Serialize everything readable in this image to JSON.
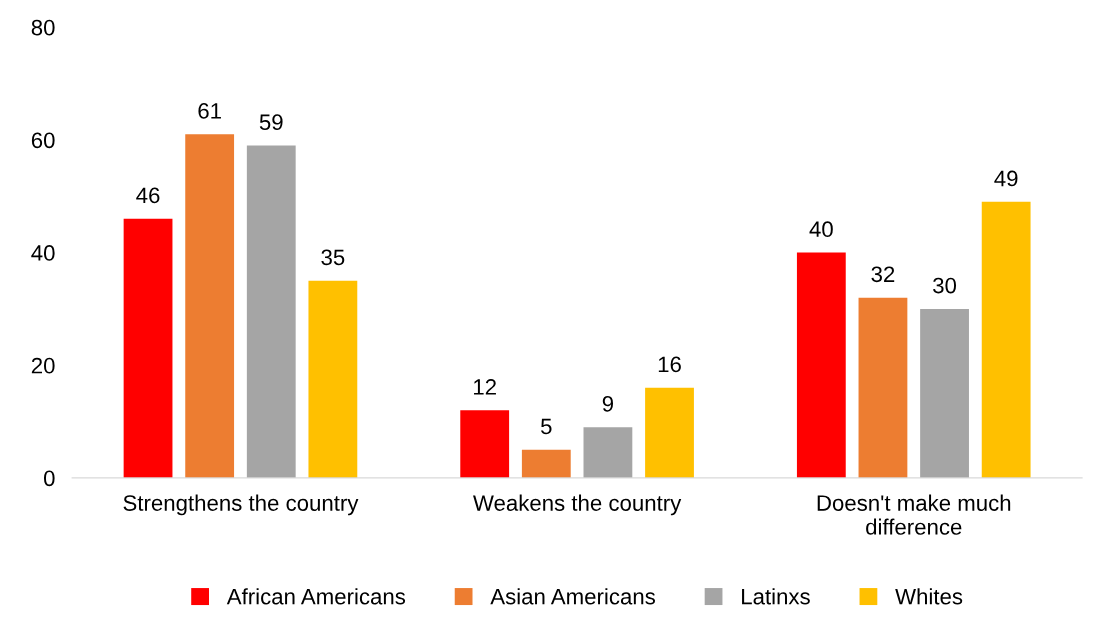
{
  "chart_data": {
    "type": "bar",
    "categories": [
      "Strengthens the country",
      "Weakens the country",
      "Doesn't make much\ndifference"
    ],
    "series": [
      {
        "name": "African Americans",
        "color": "#ff0000",
        "values": [
          46,
          12,
          40
        ]
      },
      {
        "name": "Asian Americans",
        "color": "#ed7d31",
        "values": [
          61,
          5,
          32
        ]
      },
      {
        "name": "Latinxs",
        "color": "#a5a5a5",
        "values": [
          59,
          9,
          30
        ]
      },
      {
        "name": "Whites",
        "color": "#ffc000",
        "values": [
          35,
          16,
          49
        ]
      }
    ],
    "ylim": [
      0,
      80
    ],
    "yticks": [
      0,
      20,
      40,
      60,
      80
    ],
    "grid": false,
    "legend": "bottom",
    "data_labels": true
  }
}
